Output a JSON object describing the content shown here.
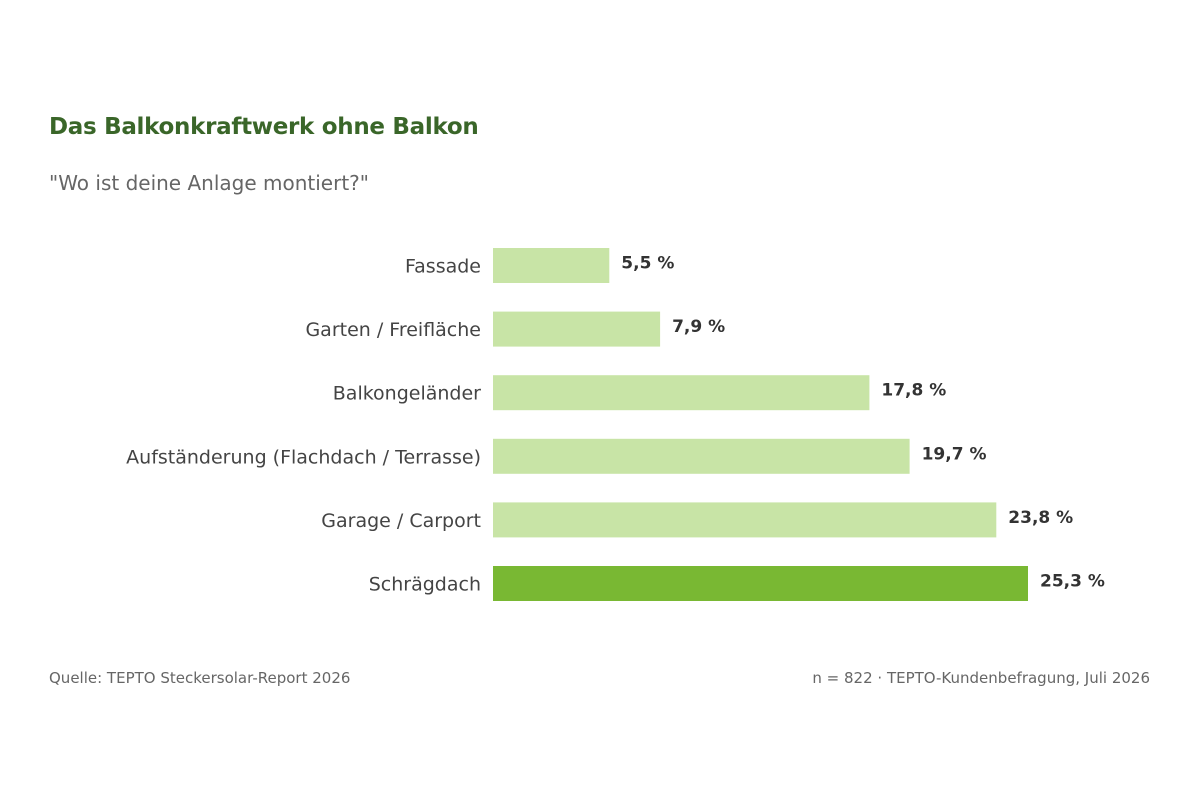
{
  "chart_data": {
    "type": "bar",
    "orientation": "horizontal",
    "title": "Das Balkonkraftwerk ohne Balkon",
    "subtitle": "\"Wo ist deine Anlage montiert?\"",
    "categories": [
      "Fassade",
      "Garten / Freifläche",
      "Balkongeländer",
      "Aufständerung (Flachdach / Terrasse)",
      "Garage / Carport",
      "Schrägdach"
    ],
    "values": [
      5.5,
      7.9,
      17.8,
      19.7,
      23.8,
      25.3
    ],
    "value_labels": [
      "5,5 %",
      "7,9 %",
      "17,8 %",
      "19,7 %",
      "23,8 %",
      "25,3 %"
    ],
    "highlight_index": 5,
    "xlim": [
      0,
      25.3
    ],
    "grid": false,
    "legend": "none",
    "colors": {
      "bar": "#c8e4a6",
      "highlight": "#79b833",
      "title": "#3a6629"
    }
  },
  "footer": {
    "source": "Quelle: TEPTO Steckersolar-Report 2026",
    "note": "n = 822 · TEPTO-Kundenbefragung, Juli 2026"
  }
}
